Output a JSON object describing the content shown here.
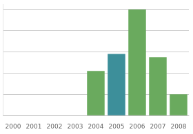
{
  "chart_data": {
    "type": "bar",
    "categories": [
      "2000",
      "2001",
      "2002",
      "2003",
      "2004",
      "2005",
      "2006",
      "2007",
      "2008"
    ],
    "values": [
      0,
      0,
      0,
      0,
      42,
      58,
      100,
      55,
      20
    ],
    "colors": [
      "#6aaa5e",
      "#6aaa5e",
      "#6aaa5e",
      "#6aaa5e",
      "#6aaa5e",
      "#3d8f9a",
      "#6aaa5e",
      "#6aaa5e",
      "#6aaa5e"
    ],
    "ylim": [
      0,
      105
    ],
    "yticks": [
      0,
      20,
      40,
      60,
      80,
      100
    ],
    "grid": true,
    "tick_labels": "x"
  }
}
